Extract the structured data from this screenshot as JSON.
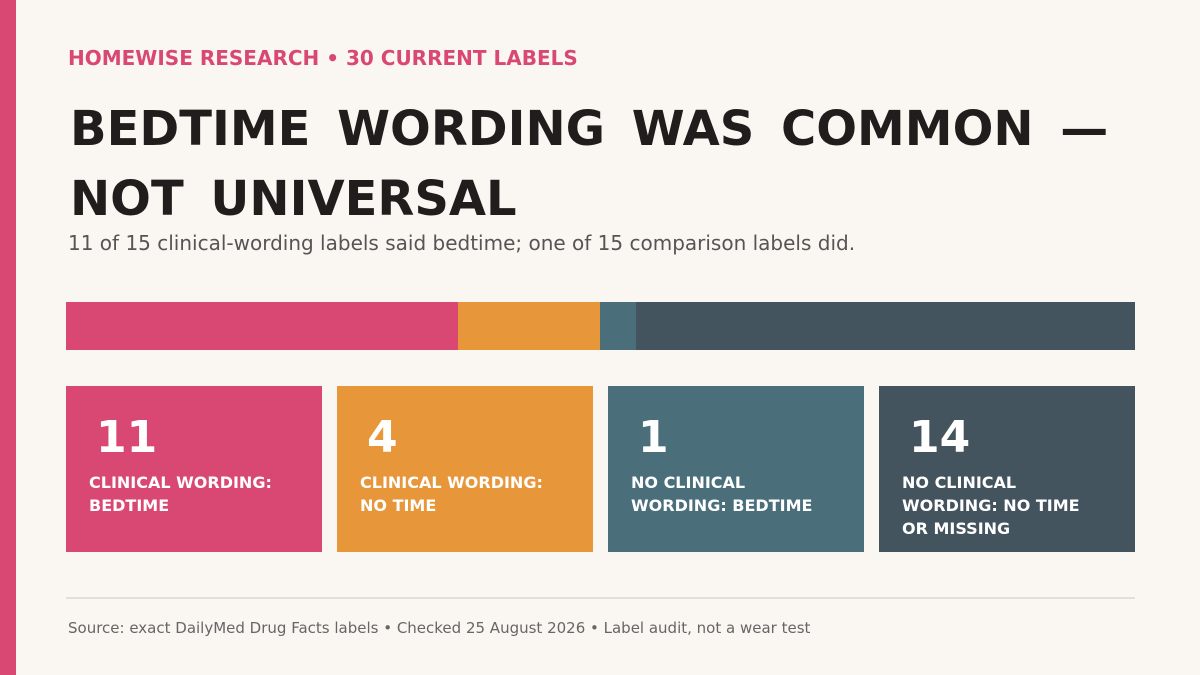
{
  "chart_data": {
    "type": "stacked_bar",
    "kicker": "HOMEWISE RESEARCH • 30 CURRENT LABELS",
    "title": "BEDTIME WORDING WAS COMMON — NOT UNIVERSAL",
    "subtitle": "11 of 15 clinical-wording labels said bedtime; one of 15 comparison labels did.",
    "series": [
      {
        "name": "CLINICAL WORDING: BEDTIME",
        "color": "#d94872",
        "values": [
          11
        ]
      },
      {
        "name": "CLINICAL WORDING: NO TIME",
        "color": "#e8963a",
        "values": [
          4
        ]
      },
      {
        "name": "NO CLINICAL WORDING: BEDTIME",
        "color": "#4a6f7b",
        "values": [
          1
        ]
      },
      {
        "name": "NO CLINICAL WORDING: NO TIME OR MISSING",
        "color": "#44545e",
        "values": [
          14
        ]
      }
    ],
    "source": "Source: exact DailyMed Drug Facts labels • Checked 25 August 2026 • Label audit, not a wear test"
  }
}
